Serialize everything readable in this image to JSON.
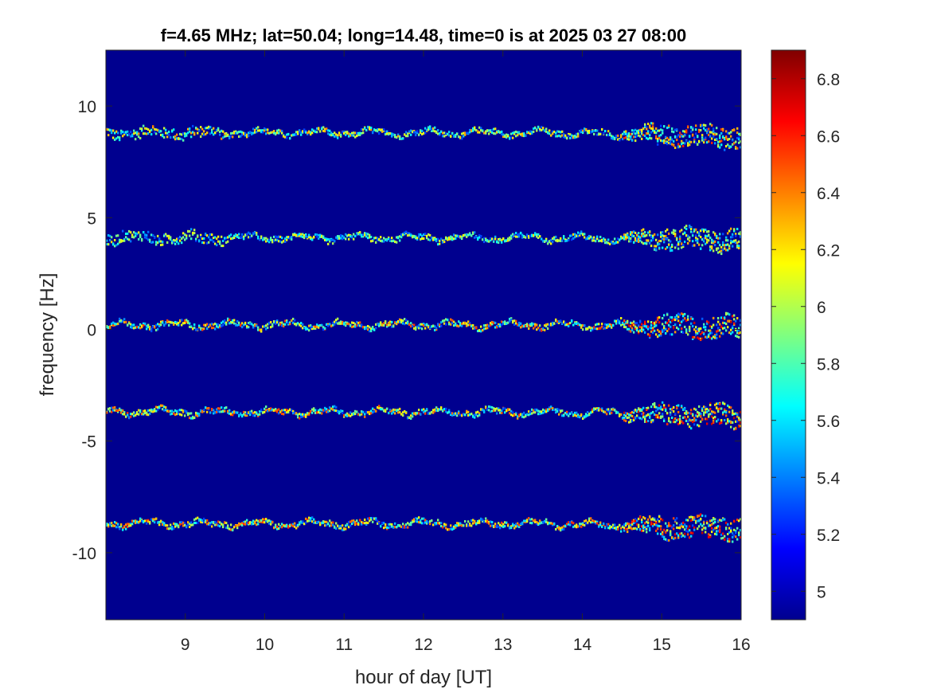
{
  "chart_data": {
    "type": "heatmap",
    "title": "f=4.65 MHz;  lat=50.04; long=14.48, time=0 is at 2025 03 27 08:00",
    "xlabel": "hour of day [UT]",
    "ylabel": "frequency [Hz]",
    "xlim": [
      8,
      16
    ],
    "ylim": [
      -13,
      12.5
    ],
    "xticks": [
      9,
      10,
      11,
      12,
      13,
      14,
      15,
      16
    ],
    "xtick_labels": [
      "9",
      "10",
      "11",
      "12",
      "13",
      "14",
      "15",
      "16"
    ],
    "yticks": [
      -10,
      -5,
      0,
      5,
      10
    ],
    "ytick_labels": [
      "-10",
      "-5",
      "0",
      "5",
      "10"
    ],
    "background_value": 4.9,
    "colorbar": {
      "colormap": "jet",
      "range": [
        4.9,
        6.9
      ],
      "ticks": [
        5,
        5.2,
        5.4,
        5.6,
        5.8,
        6,
        6.2,
        6.4,
        6.6,
        6.8
      ],
      "tick_labels": [
        "5",
        "5.2",
        "5.4",
        "5.6",
        "5.8",
        "6",
        "6.2",
        "6.4",
        "6.6",
        "6.8"
      ]
    },
    "series": [
      {
        "center_hz": 8.8,
        "right_end_hz": 8.6,
        "peak_value": 6.6
      },
      {
        "center_hz": 4.1,
        "right_end_hz": 4.0,
        "peak_value": 6.4
      },
      {
        "center_hz": 0.2,
        "right_end_hz": 0.1,
        "peak_value": 6.8
      },
      {
        "center_hz": -3.7,
        "right_end_hz": -3.9,
        "peak_value": 6.8
      },
      {
        "center_hz": -8.7,
        "right_end_hz": -8.9,
        "peak_value": 6.8
      }
    ]
  }
}
